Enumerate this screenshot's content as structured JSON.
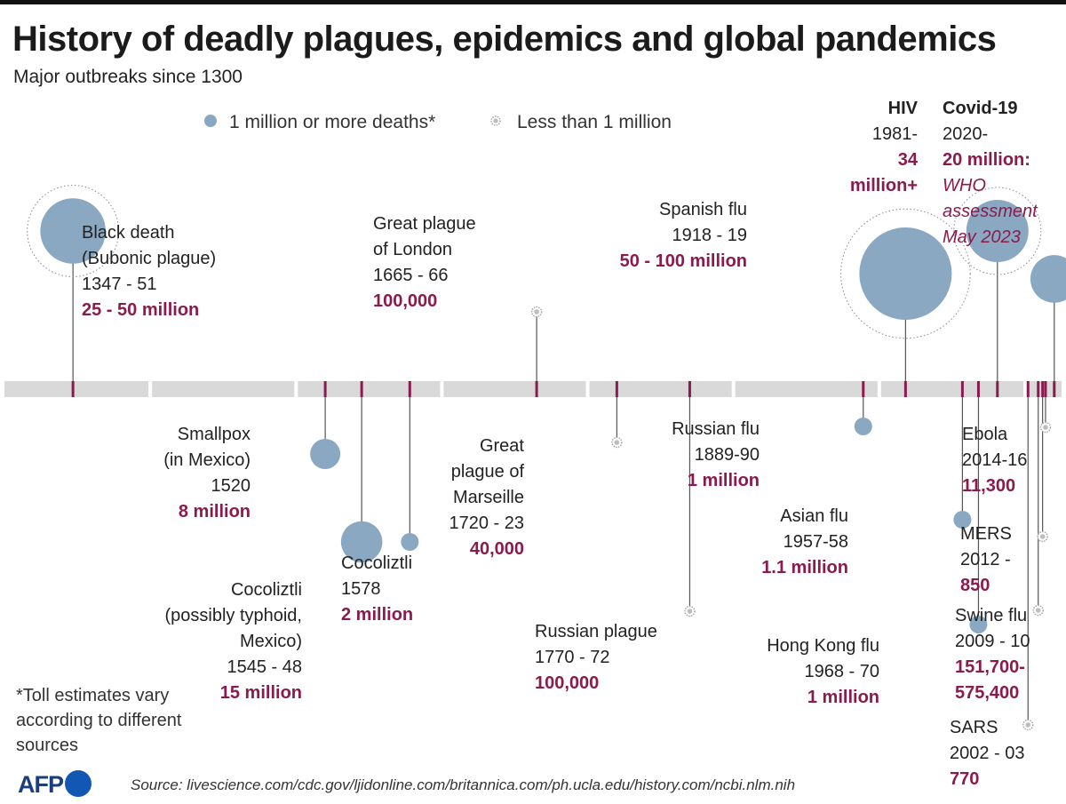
{
  "title": "History of deadly plagues, epidemics and global pandemics",
  "subtitle": "Major outbreaks since 1300",
  "legend": {
    "big": "1 million or more deaths*",
    "small": "Less than 1 million"
  },
  "footnote": [
    "*Toll estimates vary",
    "according to different",
    "sources"
  ],
  "source": "Source: livescience.com/cdc.gov/ljidonline.com/britannica.com/ph.ucla.edu/history.com/ncbi.nlm.nih",
  "brand": "AFP",
  "colors": {
    "bubble": "#8aa8c1",
    "tick": "#8b1b4d",
    "axis": "#d9d9d9",
    "toll": "#8b1b4d"
  },
  "chart_data": {
    "type": "scatter",
    "title": "History of deadly plagues, epidemics and global pandemics",
    "subtitle": "Major outbreaks since 1300",
    "x_unit": "start year",
    "size_unit": "deaths (millions)",
    "xlim": [
      1300,
      2025
    ],
    "series": [
      {
        "name": "Black death",
        "detail": "(Bubonic plague)",
        "years": "1347 - 51",
        "year": 1347,
        "toll": "25 - 50 million",
        "deaths_millions": 37.5,
        "category": "1 million or more deaths*",
        "side": "above"
      },
      {
        "name": "Smallpox",
        "detail": "(in Mexico)",
        "years": "1520",
        "year": 1520,
        "toll": "8 million",
        "deaths_millions": 8,
        "category": "1 million or more deaths*",
        "side": "below"
      },
      {
        "name": "Cocoliztli",
        "detail": "(possibly typhoid, Mexico)",
        "years": "1545 - 48",
        "year": 1545,
        "toll": "15 million",
        "deaths_millions": 15,
        "category": "1 million or more deaths*",
        "side": "below"
      },
      {
        "name": "Cocoliztli",
        "detail": "",
        "years": "1578",
        "year": 1578,
        "toll": "2 million",
        "deaths_millions": 2,
        "category": "1 million or more deaths*",
        "side": "below"
      },
      {
        "name": "Great plague of London",
        "detail": "",
        "years": "1665 - 66",
        "year": 1665,
        "toll": "100,000",
        "deaths_millions": 0.1,
        "category": "Less than 1 million",
        "side": "above"
      },
      {
        "name": "Great plague of Marseille",
        "detail": "",
        "years": "1720 - 23",
        "year": 1720,
        "toll": "40,000",
        "deaths_millions": 0.04,
        "category": "Less than 1 million",
        "side": "below"
      },
      {
        "name": "Russian plague",
        "detail": "",
        "years": "1770 - 72",
        "year": 1770,
        "toll": "100,000",
        "deaths_millions": 0.1,
        "category": "Less than 1 million",
        "side": "below"
      },
      {
        "name": "Russian flu",
        "detail": "",
        "years": "1889-90",
        "year": 1889,
        "toll": "1 million",
        "deaths_millions": 1,
        "category": "1 million or more deaths*",
        "side": "below"
      },
      {
        "name": "Spanish flu",
        "detail": "",
        "years": "1918 - 19",
        "year": 1918,
        "toll": "50 - 100 million",
        "deaths_millions": 75,
        "category": "1 million or more deaths*",
        "side": "above"
      },
      {
        "name": "Asian flu",
        "detail": "",
        "years": "1957-58",
        "year": 1957,
        "toll": "1.1 million",
        "deaths_millions": 1.1,
        "category": "1 million or more deaths*",
        "side": "below"
      },
      {
        "name": "Hong Kong flu",
        "detail": "",
        "years": "1968 - 70",
        "year": 1968,
        "toll": "1 million",
        "deaths_millions": 1,
        "category": "1 million or more deaths*",
        "side": "below"
      },
      {
        "name": "HIV",
        "detail": "",
        "years": "1981-",
        "year": 1981,
        "toll": "34 million+",
        "deaths_millions": 34,
        "category": "1 million or more deaths*",
        "side": "above"
      },
      {
        "name": "SARS",
        "detail": "",
        "years": "2002 - 03",
        "year": 2002,
        "toll": "770",
        "deaths_millions": 0.00077,
        "category": "Less than 1 million",
        "side": "below"
      },
      {
        "name": "Swine flu",
        "detail": "",
        "years": "2009 - 10",
        "year": 2009,
        "toll": "151,700-575,400",
        "deaths_millions": 0.36,
        "category": "Less than 1 million",
        "side": "below"
      },
      {
        "name": "MERS",
        "detail": "",
        "years": "2012 -",
        "year": 2012,
        "toll": "850",
        "deaths_millions": 0.00085,
        "category": "Less than 1 million",
        "side": "below"
      },
      {
        "name": "Ebola",
        "detail": "",
        "years": "2014-16",
        "year": 2014,
        "toll": "11,300",
        "deaths_millions": 0.0113,
        "category": "Less than 1 million",
        "side": "below"
      },
      {
        "name": "Covid-19",
        "detail": "",
        "years": "2020-",
        "year": 2020,
        "toll": "20 million:",
        "toll_note": "WHO assessment May 2023",
        "deaths_millions": 20,
        "category": "1 million or more deaths*",
        "side": "above"
      }
    ],
    "legend": [
      "1 million or more deaths*",
      "Less than 1 million"
    ],
    "grid": false
  }
}
